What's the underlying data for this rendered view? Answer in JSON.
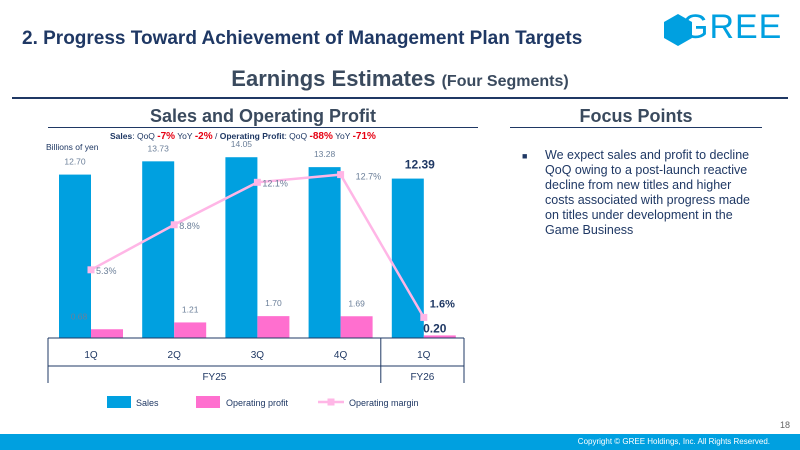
{
  "header": {
    "slide_title": "2. Progress Toward Achievement of Management Plan Targets",
    "logo_text": "GREE"
  },
  "section": {
    "title": "Earnings Estimates",
    "subtitle": "(Four Segments)"
  },
  "left_panel": {
    "heading": "Sales and Operating Profit",
    "summary": {
      "sales_label": "Sales",
      "qoq_label": "QoQ",
      "sales_qoq": "-7%",
      "yoy_label": "YoY",
      "sales_yoy": "-2%",
      "separator": "/",
      "op_label": "Operating Profit",
      "op_qoq": "-88%",
      "op_yoy": "-71%"
    },
    "unit": "Billions of yen"
  },
  "right_panel": {
    "heading": "Focus Points",
    "bullets": [
      "We expect sales and profit to decline QoQ owing to a post-launch reactive decline from new titles and higher costs associated with progress made on titles under development in the Game Business"
    ]
  },
  "chart_data": {
    "type": "bar",
    "categories": [
      "1Q",
      "2Q",
      "3Q",
      "4Q",
      "1Q"
    ],
    "groups": [
      {
        "label": "FY25",
        "categories": [
          "1Q",
          "2Q",
          "3Q",
          "4Q"
        ]
      },
      {
        "label": "FY26",
        "categories": [
          "1Q"
        ]
      }
    ],
    "series": [
      {
        "name": "Sales",
        "type": "bar",
        "values": [
          12.7,
          13.73,
          14.05,
          13.28,
          12.39
        ],
        "labels": [
          "12.70",
          "13.73",
          "14.05",
          "13.28",
          "12.39"
        ],
        "color": "#00a0e0"
      },
      {
        "name": "Operating profit",
        "type": "bar",
        "values": [
          0.68,
          1.21,
          1.7,
          1.69,
          0.2
        ],
        "labels": [
          "0.68",
          "1.21",
          "1.70",
          "1.69",
          "0.20"
        ],
        "color": "#ff6fcf"
      },
      {
        "name": "Operating margin",
        "type": "line",
        "values": [
          5.3,
          8.8,
          12.1,
          12.7,
          1.6
        ],
        "labels": [
          "5.3%",
          "8.8%",
          "12.1%",
          "12.7%",
          "1.6%"
        ],
        "color": "#ffb6e6"
      }
    ],
    "ylim": [
      0,
      15
    ],
    "ylim_margin": [
      0,
      15
    ],
    "legend_position": "bottom",
    "grid": false
  },
  "footer": {
    "page_number": "18",
    "copyright": "Copyright © GREE Holdings, Inc. All Rights Reserved."
  },
  "colors": {
    "navy": "#1f3864",
    "brand_blue": "#00a0e0",
    "accent_red": "#e60012"
  }
}
